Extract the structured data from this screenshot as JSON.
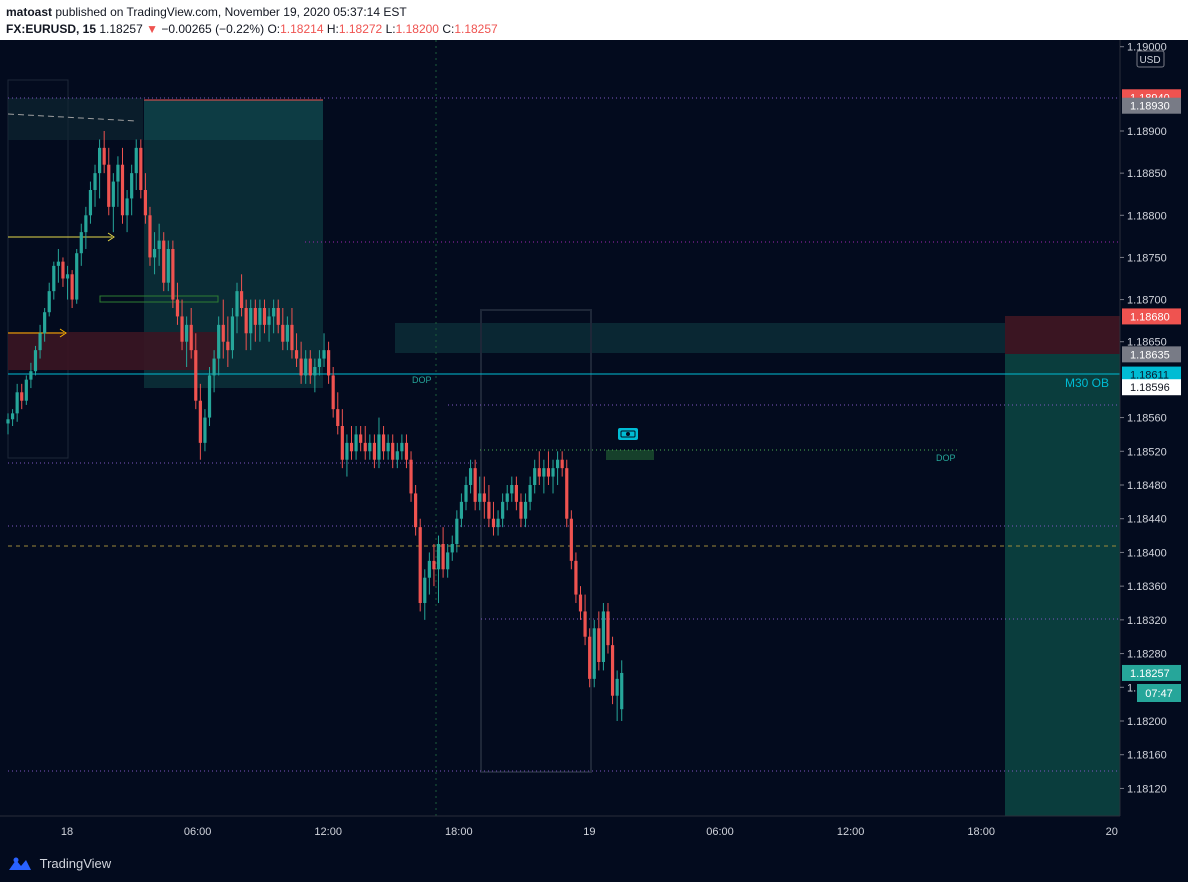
{
  "header": {
    "author": "matoast",
    "published_text": "published on TradingView.com, November 19, 2020 05:37:14 EST",
    "symbol": "FX:EURUSD, 15",
    "last": "1.18257",
    "change_arrow": "▼",
    "change": "−0.00265 (−0.22%)",
    "o_label": "O:",
    "o_value": "1.18214",
    "h_label": "H:",
    "h_value": "1.18272",
    "l_label": "L:",
    "l_value": "1.18200",
    "c_label": "C:",
    "c_value": "1.18257"
  },
  "footer": {
    "brand": "TradingView"
  },
  "colors": {
    "background": "#030b1e",
    "up": "#26a69a",
    "down": "#ef5350",
    "accent": "#2962ff"
  },
  "chart_data": {
    "type": "candlestick",
    "currency_label": "USD",
    "ylim": [
      1.181,
      1.19
    ],
    "y_ticks": [
      "1.19000",
      "1.18900",
      "1.18850",
      "1.18800",
      "1.18750",
      "1.18700",
      "1.18650",
      "1.18560",
      "1.18520",
      "1.18480",
      "1.18440",
      "1.18400",
      "1.18360",
      "1.18320",
      "1.18280",
      "1.18240",
      "1.18200",
      "1.18160",
      "1.18120"
    ],
    "x_ticks": [
      "18",
      "06:00",
      "12:00",
      "18:00",
      "19",
      "06:00",
      "12:00",
      "18:00",
      "20"
    ],
    "price_badges": [
      {
        "value": "1.18940",
        "color": "#ef5350",
        "text_color": "#ffffff"
      },
      {
        "value": "1.18930",
        "color": "#787b86",
        "text_color": "#ffffff"
      },
      {
        "value": "1.18680",
        "color": "#ef5350",
        "text_color": "#ffffff"
      },
      {
        "value": "1.18635",
        "color": "#787b86",
        "text_color": "#ffffff"
      },
      {
        "value": "1.18611",
        "color": "#00bcd4",
        "text_color": "#0b1a2e"
      },
      {
        "value": "1.18596",
        "color": "#ffffff",
        "text_color": "#131722"
      },
      {
        "value": "1.18257",
        "color": "#26a69a",
        "text_color": "#ffffff"
      }
    ],
    "countdown": "07:47",
    "annotations": [
      "DOP",
      "DOP",
      "M30 OB"
    ],
    "ohlc": [
      [
        1.18553,
        1.18565,
        1.1854,
        1.18558
      ],
      [
        1.18558,
        1.1857,
        1.1855,
        1.18565
      ],
      [
        1.18565,
        1.186,
        1.18555,
        1.1859
      ],
      [
        1.1859,
        1.186,
        1.1857,
        1.1858
      ],
      [
        1.1858,
        1.1861,
        1.18575,
        1.18605
      ],
      [
        1.18605,
        1.18625,
        1.18595,
        1.18615
      ],
      [
        1.18615,
        1.18645,
        1.1861,
        1.1864
      ],
      [
        1.1864,
        1.1867,
        1.1863,
        1.1866
      ],
      [
        1.1866,
        1.1869,
        1.1865,
        1.18685
      ],
      [
        1.18685,
        1.1872,
        1.1868,
        1.1871
      ],
      [
        1.1871,
        1.18745,
        1.187,
        1.1874
      ],
      [
        1.1874,
        1.1876,
        1.1872,
        1.18745
      ],
      [
        1.18745,
        1.1875,
        1.18715,
        1.18725
      ],
      [
        1.18725,
        1.1874,
        1.187,
        1.1873
      ],
      [
        1.1873,
        1.18735,
        1.1869,
        1.187
      ],
      [
        1.187,
        1.1876,
        1.18695,
        1.18755
      ],
      [
        1.18755,
        1.1879,
        1.1874,
        1.1878
      ],
      [
        1.1878,
        1.1881,
        1.1876,
        1.188
      ],
      [
        1.188,
        1.1884,
        1.1879,
        1.1883
      ],
      [
        1.1883,
        1.1886,
        1.1881,
        1.1885
      ],
      [
        1.1885,
        1.1889,
        1.1882,
        1.1888
      ],
      [
        1.1888,
        1.189,
        1.1885,
        1.1886
      ],
      [
        1.1886,
        1.1888,
        1.188,
        1.1881
      ],
      [
        1.1881,
        1.1885,
        1.1878,
        1.1884
      ],
      [
        1.1884,
        1.1887,
        1.1881,
        1.1886
      ],
      [
        1.1886,
        1.1888,
        1.1879,
        1.188
      ],
      [
        1.188,
        1.1883,
        1.1878,
        1.1882
      ],
      [
        1.1882,
        1.1886,
        1.188,
        1.1885
      ],
      [
        1.1885,
        1.1889,
        1.1883,
        1.1888
      ],
      [
        1.1888,
        1.1889,
        1.1882,
        1.1883
      ],
      [
        1.1883,
        1.1885,
        1.1879,
        1.188
      ],
      [
        1.188,
        1.1881,
        1.1874,
        1.1875
      ],
      [
        1.1875,
        1.1878,
        1.1873,
        1.1876
      ],
      [
        1.1876,
        1.1879,
        1.1874,
        1.1877
      ],
      [
        1.1877,
        1.1878,
        1.1871,
        1.1872
      ],
      [
        1.1872,
        1.1877,
        1.1871,
        1.1876
      ],
      [
        1.1876,
        1.1877,
        1.1869,
        1.187
      ],
      [
        1.187,
        1.1872,
        1.1867,
        1.1868
      ],
      [
        1.1868,
        1.187,
        1.1864,
        1.1865
      ],
      [
        1.1865,
        1.1868,
        1.1862,
        1.1867
      ],
      [
        1.1867,
        1.1869,
        1.1863,
        1.1864
      ],
      [
        1.1864,
        1.1866,
        1.1857,
        1.1858
      ],
      [
        1.1858,
        1.186,
        1.1851,
        1.1853
      ],
      [
        1.1853,
        1.1857,
        1.1852,
        1.1856
      ],
      [
        1.1856,
        1.1862,
        1.1855,
        1.1861
      ],
      [
        1.1861,
        1.1864,
        1.1859,
        1.1863
      ],
      [
        1.1863,
        1.1868,
        1.1861,
        1.1867
      ],
      [
        1.1867,
        1.187,
        1.1863,
        1.1865
      ],
      [
        1.1865,
        1.1868,
        1.1862,
        1.1864
      ],
      [
        1.1864,
        1.1869,
        1.1863,
        1.1868
      ],
      [
        1.1868,
        1.1872,
        1.1866,
        1.1871
      ],
      [
        1.1871,
        1.1873,
        1.1868,
        1.1869
      ],
      [
        1.1869,
        1.187,
        1.1864,
        1.1866
      ],
      [
        1.1866,
        1.187,
        1.1864,
        1.1869
      ],
      [
        1.1869,
        1.187,
        1.1865,
        1.1867
      ],
      [
        1.1867,
        1.187,
        1.1865,
        1.1869
      ],
      [
        1.1869,
        1.187,
        1.1866,
        1.1867
      ],
      [
        1.1867,
        1.1869,
        1.1865,
        1.1868
      ],
      [
        1.1868,
        1.187,
        1.1866,
        1.1869
      ],
      [
        1.1869,
        1.187,
        1.1866,
        1.1867
      ],
      [
        1.1867,
        1.1869,
        1.1864,
        1.1865
      ],
      [
        1.1865,
        1.1868,
        1.1864,
        1.1867
      ],
      [
        1.1867,
        1.1869,
        1.1863,
        1.1864
      ],
      [
        1.1864,
        1.1866,
        1.1862,
        1.1863
      ],
      [
        1.1863,
        1.1865,
        1.186,
        1.1861
      ],
      [
        1.1861,
        1.1864,
        1.186,
        1.1863
      ],
      [
        1.1863,
        1.1864,
        1.186,
        1.1861
      ],
      [
        1.1861,
        1.1863,
        1.1859,
        1.1862
      ],
      [
        1.1862,
        1.1864,
        1.1861,
        1.1863
      ],
      [
        1.1863,
        1.1866,
        1.1862,
        1.1864
      ],
      [
        1.1864,
        1.1865,
        1.186,
        1.1861
      ],
      [
        1.1861,
        1.1862,
        1.1856,
        1.1857
      ],
      [
        1.1857,
        1.1859,
        1.1854,
        1.1855
      ],
      [
        1.1855,
        1.1857,
        1.185,
        1.1851
      ],
      [
        1.1851,
        1.1854,
        1.1849,
        1.1853
      ],
      [
        1.1853,
        1.1855,
        1.1851,
        1.1852
      ],
      [
        1.1852,
        1.1855,
        1.1851,
        1.1854
      ],
      [
        1.1854,
        1.1855,
        1.1852,
        1.1853
      ],
      [
        1.1853,
        1.1855,
        1.1851,
        1.1852
      ],
      [
        1.1852,
        1.1854,
        1.1851,
        1.1853
      ],
      [
        1.1853,
        1.1854,
        1.185,
        1.1851
      ],
      [
        1.1851,
        1.1856,
        1.185,
        1.1854
      ],
      [
        1.1854,
        1.1855,
        1.1851,
        1.1852
      ],
      [
        1.1852,
        1.1854,
        1.1851,
        1.1853
      ],
      [
        1.1853,
        1.1854,
        1.185,
        1.1851
      ],
      [
        1.1851,
        1.1853,
        1.185,
        1.1852
      ],
      [
        1.1852,
        1.1854,
        1.1851,
        1.1853
      ],
      [
        1.1853,
        1.1854,
        1.185,
        1.1851
      ],
      [
        1.1851,
        1.1852,
        1.1846,
        1.1847
      ],
      [
        1.1847,
        1.1848,
        1.1842,
        1.1843
      ],
      [
        1.1843,
        1.1844,
        1.1833,
        1.1834
      ],
      [
        1.1834,
        1.1838,
        1.1832,
        1.1837
      ],
      [
        1.1837,
        1.184,
        1.1835,
        1.1839
      ],
      [
        1.1839,
        1.1841,
        1.1836,
        1.1838
      ],
      [
        1.1838,
        1.1842,
        1.1834,
        1.1841
      ],
      [
        1.1841,
        1.1843,
        1.1837,
        1.1838
      ],
      [
        1.1838,
        1.1841,
        1.1837,
        1.184
      ],
      [
        1.184,
        1.1842,
        1.1839,
        1.1841
      ],
      [
        1.1841,
        1.1845,
        1.184,
        1.1844
      ],
      [
        1.1844,
        1.1847,
        1.1843,
        1.1846
      ],
      [
        1.1846,
        1.1849,
        1.1845,
        1.1848
      ],
      [
        1.1848,
        1.1851,
        1.1847,
        1.185
      ],
      [
        1.185,
        1.1851,
        1.1845,
        1.1846
      ],
      [
        1.1846,
        1.1849,
        1.1845,
        1.1847
      ],
      [
        1.1847,
        1.1849,
        1.1844,
        1.1846
      ],
      [
        1.1846,
        1.1848,
        1.1843,
        1.1844
      ],
      [
        1.1844,
        1.1846,
        1.1842,
        1.1843
      ],
      [
        1.1843,
        1.1845,
        1.1842,
        1.1844
      ],
      [
        1.1844,
        1.1847,
        1.1843,
        1.1846
      ],
      [
        1.1846,
        1.1848,
        1.1845,
        1.1847
      ],
      [
        1.1847,
        1.1849,
        1.1846,
        1.1848
      ],
      [
        1.1848,
        1.1849,
        1.1845,
        1.1846
      ],
      [
        1.1846,
        1.1847,
        1.1843,
        1.1844
      ],
      [
        1.1844,
        1.1847,
        1.1843,
        1.1846
      ],
      [
        1.1846,
        1.1849,
        1.1845,
        1.1848
      ],
      [
        1.1848,
        1.1851,
        1.1847,
        1.185
      ],
      [
        1.185,
        1.1852,
        1.1848,
        1.1849
      ],
      [
        1.1849,
        1.1851,
        1.1847,
        1.185
      ],
      [
        1.185,
        1.1852,
        1.1848,
        1.1849
      ],
      [
        1.1849,
        1.1851,
        1.1847,
        1.185
      ],
      [
        1.185,
        1.1852,
        1.1848,
        1.1851
      ],
      [
        1.1851,
        1.1852,
        1.1849,
        1.185
      ],
      [
        1.185,
        1.1851,
        1.1843,
        1.1844
      ],
      [
        1.1844,
        1.1845,
        1.1838,
        1.1839
      ],
      [
        1.1839,
        1.184,
        1.1834,
        1.1835
      ],
      [
        1.1835,
        1.1836,
        1.1832,
        1.1833
      ],
      [
        1.1833,
        1.1835,
        1.1829,
        1.183
      ],
      [
        1.183,
        1.1831,
        1.1824,
        1.1825
      ],
      [
        1.1825,
        1.1832,
        1.1824,
        1.1831
      ],
      [
        1.1831,
        1.1833,
        1.1826,
        1.1827
      ],
      [
        1.1827,
        1.1834,
        1.1826,
        1.1833
      ],
      [
        1.1833,
        1.1834,
        1.1828,
        1.1829
      ],
      [
        1.1829,
        1.183,
        1.1822,
        1.1823
      ],
      [
        1.1823,
        1.1826,
        1.182,
        1.1825
      ],
      [
        1.18214,
        1.18272,
        1.182,
        1.18257
      ]
    ]
  }
}
